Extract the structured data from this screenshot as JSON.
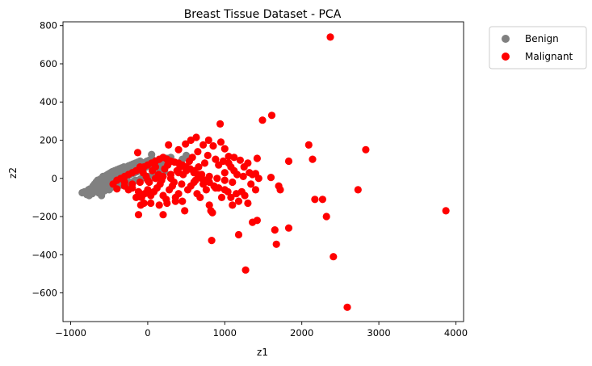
{
  "chart_data": {
    "type": "scatter",
    "title": "Breast Tissue Dataset - PCA",
    "xlabel": "z1",
    "ylabel": "z2",
    "xlim": [
      -1100,
      4100
    ],
    "ylim": [
      -750,
      820
    ],
    "xticks": [
      -1000,
      0,
      1000,
      2000,
      3000,
      4000
    ],
    "yticks": [
      -600,
      -400,
      -200,
      0,
      200,
      400,
      600,
      800
    ],
    "grid": false,
    "legend_position": "outside-top-right",
    "series": [
      {
        "name": "Benign",
        "color": "#808080",
        "points": [
          [
            -850,
            -75
          ],
          [
            -820,
            -70
          ],
          [
            -790,
            -85
          ],
          [
            -770,
            -60
          ],
          [
            -750,
            -55
          ],
          [
            -730,
            -70
          ],
          [
            -710,
            -40
          ],
          [
            -700,
            -50
          ],
          [
            -690,
            -30
          ],
          [
            -680,
            -60
          ],
          [
            -670,
            -20
          ],
          [
            -660,
            -45
          ],
          [
            -650,
            -10
          ],
          [
            -640,
            -35
          ],
          [
            -630,
            -55
          ],
          [
            -620,
            -5
          ],
          [
            -610,
            -25
          ],
          [
            -600,
            0
          ],
          [
            -590,
            -40
          ],
          [
            -580,
            10
          ],
          [
            -570,
            -15
          ],
          [
            -560,
            5
          ],
          [
            -550,
            -30
          ],
          [
            -540,
            15
          ],
          [
            -530,
            -5
          ],
          [
            -520,
            20
          ],
          [
            -510,
            -20
          ],
          [
            -500,
            25
          ],
          [
            -490,
            0
          ],
          [
            -480,
            30
          ],
          [
            -470,
            -10
          ],
          [
            -460,
            35
          ],
          [
            -450,
            10
          ],
          [
            -440,
            -25
          ],
          [
            -430,
            40
          ],
          [
            -420,
            15
          ],
          [
            -410,
            -5
          ],
          [
            -400,
            45
          ],
          [
            -390,
            20
          ],
          [
            -380,
            0
          ],
          [
            -370,
            50
          ],
          [
            -360,
            25
          ],
          [
            -350,
            -15
          ],
          [
            -340,
            55
          ],
          [
            -330,
            30
          ],
          [
            -320,
            5
          ],
          [
            -310,
            60
          ],
          [
            -300,
            35
          ],
          [
            -290,
            10
          ],
          [
            -280,
            55
          ],
          [
            -270,
            40
          ],
          [
            -260,
            15
          ],
          [
            -250,
            65
          ],
          [
            -240,
            45
          ],
          [
            -230,
            20
          ],
          [
            -220,
            70
          ],
          [
            -210,
            50
          ],
          [
            -200,
            25
          ],
          [
            -190,
            75
          ],
          [
            -180,
            55
          ],
          [
            -170,
            30
          ],
          [
            -160,
            80
          ],
          [
            -150,
            60
          ],
          [
            -140,
            35
          ],
          [
            -130,
            85
          ],
          [
            -120,
            65
          ],
          [
            -110,
            40
          ],
          [
            -100,
            90
          ],
          [
            -90,
            70
          ],
          [
            -80,
            45
          ],
          [
            -70,
            75
          ],
          [
            -60,
            50
          ],
          [
            -50,
            80
          ],
          [
            -40,
            55
          ],
          [
            -30,
            85
          ],
          [
            -20,
            60
          ],
          [
            -10,
            90
          ],
          [
            0,
            65
          ],
          [
            20,
            95
          ],
          [
            40,
            70
          ],
          [
            60,
            100
          ],
          [
            80,
            75
          ],
          [
            100,
            85
          ],
          [
            120,
            60
          ],
          [
            140,
            90
          ],
          [
            160,
            65
          ],
          [
            180,
            95
          ],
          [
            200,
            70
          ],
          [
            250,
            105
          ],
          [
            270,
            80
          ],
          [
            300,
            110
          ],
          [
            50,
            125
          ],
          [
            -600,
            -90
          ],
          [
            -720,
            -80
          ],
          [
            -640,
            -75
          ],
          [
            -560,
            -65
          ],
          [
            -480,
            -50
          ],
          [
            -400,
            -40
          ],
          [
            -320,
            -30
          ],
          [
            -240,
            -20
          ],
          [
            -160,
            -10
          ],
          [
            -80,
            0
          ],
          [
            0,
            10
          ],
          [
            80,
            20
          ],
          [
            160,
            30
          ],
          [
            -500,
            -60
          ],
          [
            -420,
            -45
          ],
          [
            -340,
            -35
          ],
          [
            -260,
            -25
          ],
          [
            -180,
            -15
          ],
          [
            -100,
            -5
          ],
          [
            -20,
            5
          ],
          [
            60,
            15
          ],
          [
            140,
            25
          ],
          [
            220,
            35
          ],
          [
            500,
            120
          ],
          [
            450,
            100
          ],
          [
            -760,
            -90
          ]
        ]
      },
      {
        "name": "Malignant",
        "color": "#ff0000",
        "points": [
          [
            2370,
            740
          ],
          [
            1610,
            330
          ],
          [
            1490,
            305
          ],
          [
            940,
            285
          ],
          [
            2830,
            150
          ],
          [
            2090,
            175
          ],
          [
            2140,
            100
          ],
          [
            1830,
            90
          ],
          [
            630,
            215
          ],
          [
            560,
            200
          ],
          [
            790,
            200
          ],
          [
            950,
            190
          ],
          [
            490,
            180
          ],
          [
            720,
            175
          ],
          [
            850,
            170
          ],
          [
            1000,
            155
          ],
          [
            270,
            175
          ],
          [
            400,
            150
          ],
          [
            650,
            140
          ],
          [
            1420,
            105
          ],
          [
            1120,
            110
          ],
          [
            1200,
            95
          ],
          [
            1050,
            115
          ],
          [
            1300,
            80
          ],
          [
            1250,
            60
          ],
          [
            1600,
            5
          ],
          [
            1400,
            25
          ],
          [
            1320,
            30
          ],
          [
            1360,
            20
          ],
          [
            1700,
            -40
          ],
          [
            1720,
            -60
          ],
          [
            1400,
            -60
          ],
          [
            1220,
            -70
          ],
          [
            1150,
            -80
          ],
          [
            1080,
            -100
          ],
          [
            1000,
            -60
          ],
          [
            920,
            -50
          ],
          [
            860,
            -40
          ],
          [
            800,
            -20
          ],
          [
            750,
            -10
          ],
          [
            700,
            0
          ],
          [
            650,
            20
          ],
          [
            600,
            40
          ],
          [
            550,
            50
          ],
          [
            500,
            60
          ],
          [
            450,
            70
          ],
          [
            400,
            80
          ],
          [
            350,
            85
          ],
          [
            300,
            90
          ],
          [
            250,
            100
          ],
          [
            200,
            110
          ],
          [
            150,
            100
          ],
          [
            100,
            90
          ],
          [
            50,
            80
          ],
          [
            0,
            70
          ],
          [
            -50,
            60
          ],
          [
            -100,
            50
          ],
          [
            -150,
            40
          ],
          [
            -200,
            30
          ],
          [
            -250,
            20
          ],
          [
            -300,
            10
          ],
          [
            -350,
            0
          ],
          [
            -400,
            -10
          ],
          [
            -450,
            -30
          ],
          [
            -400,
            -55
          ],
          [
            -300,
            -40
          ],
          [
            -200,
            -30
          ],
          [
            -100,
            -20
          ],
          [
            0,
            -10
          ],
          [
            100,
            0
          ],
          [
            200,
            10
          ],
          [
            300,
            20
          ],
          [
            400,
            30
          ],
          [
            500,
            40
          ],
          [
            600,
            30
          ],
          [
            700,
            20
          ],
          [
            800,
            10
          ],
          [
            900,
            0
          ],
          [
            1000,
            -10
          ],
          [
            1100,
            -20
          ],
          [
            -120,
            -70
          ],
          [
            -80,
            -100
          ],
          [
            -40,
            -80
          ],
          [
            0,
            -60
          ],
          [
            40,
            -90
          ],
          [
            80,
            -70
          ],
          [
            120,
            -50
          ],
          [
            160,
            -30
          ],
          [
            200,
            -90
          ],
          [
            240,
            -110
          ],
          [
            280,
            -60
          ],
          [
            320,
            -40
          ],
          [
            360,
            -120
          ],
          [
            400,
            -80
          ],
          [
            440,
            -30
          ],
          [
            480,
            -170
          ],
          [
            520,
            -60
          ],
          [
            560,
            -40
          ],
          [
            600,
            -20
          ],
          [
            640,
            -80
          ],
          [
            680,
            -100
          ],
          [
            720,
            -30
          ],
          [
            760,
            -60
          ],
          [
            800,
            -140
          ],
          [
            820,
            -170
          ],
          [
            840,
            -180
          ],
          [
            880,
            -50
          ],
          [
            960,
            -100
          ],
          [
            1040,
            -70
          ],
          [
            1100,
            -140
          ],
          [
            1180,
            -120
          ],
          [
            1260,
            -90
          ],
          [
            1300,
            -130
          ],
          [
            -120,
            -190
          ],
          [
            -90,
            -140
          ],
          [
            40,
            -130
          ],
          [
            200,
            -190
          ],
          [
            360,
            -100
          ],
          [
            2270,
            -110
          ],
          [
            2320,
            -200
          ],
          [
            2730,
            -60
          ],
          [
            2170,
            -110
          ],
          [
            3870,
            -170
          ],
          [
            1830,
            -260
          ],
          [
            1650,
            -270
          ],
          [
            1420,
            -220
          ],
          [
            1360,
            -230
          ],
          [
            1180,
            -295
          ],
          [
            830,
            -325
          ],
          [
            1670,
            -345
          ],
          [
            2410,
            -410
          ],
          [
            1270,
            -480
          ],
          [
            2590,
            -675
          ],
          [
            -130,
            135
          ],
          [
            -100,
            60
          ],
          [
            -60,
            30
          ],
          [
            -20,
            10
          ],
          [
            20,
            -20
          ],
          [
            60,
            40
          ],
          [
            100,
            60
          ],
          [
            140,
            20
          ],
          [
            180,
            -10
          ],
          [
            220,
            50
          ],
          [
            260,
            70
          ],
          [
            300,
            0
          ],
          [
            340,
            -20
          ],
          [
            380,
            40
          ],
          [
            420,
            60
          ],
          [
            460,
            20
          ],
          [
            540,
            90
          ],
          [
            580,
            110
          ],
          [
            620,
            -10
          ],
          [
            660,
            60
          ],
          [
            740,
            80
          ],
          [
            780,
            120
          ],
          [
            880,
            100
          ],
          [
            920,
            70
          ],
          [
            980,
            90
          ],
          [
            1080,
            60
          ],
          [
            1120,
            40
          ],
          [
            1160,
            20
          ],
          [
            1240,
            10
          ],
          [
            1340,
            -30
          ],
          [
            1440,
            0
          ],
          [
            1000,
            30
          ],
          [
            1050,
            80
          ],
          [
            -200,
            -50
          ],
          [
            -250,
            -60
          ],
          [
            -300,
            -20
          ],
          [
            -150,
            -100
          ],
          [
            -50,
            -130
          ],
          [
            150,
            -140
          ],
          [
            250,
            -130
          ],
          [
            450,
            -120
          ]
        ]
      }
    ]
  }
}
